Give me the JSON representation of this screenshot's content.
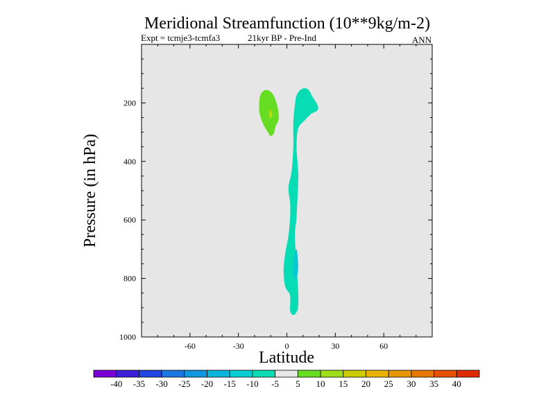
{
  "chart_data": {
    "type": "contour",
    "title": "Meridional Streamfunction (10**9kg/m-2)",
    "subtitle_left": "Expt = tcmje3-tcmfa3",
    "subtitle_mid": "21kyr BP - Pre-Ind",
    "subtitle_right": "ANN",
    "xlabel": "Latitude",
    "ylabel": "Pressure (in hPa)",
    "xlim": [
      -90,
      90
    ],
    "ylim": [
      1000,
      0
    ],
    "y_scale": "linear, inverted",
    "xticks": [
      -60,
      -30,
      0,
      30,
      60
    ],
    "yticks": [
      1000,
      800,
      600,
      400,
      200
    ],
    "background_color": "#e6e6e6",
    "colorbar": {
      "labels": [
        "-40",
        "-35",
        "-30",
        "-25",
        "-20",
        "-15",
        "-10",
        "-5",
        "5",
        "10",
        "15",
        "20",
        "25",
        "30",
        "35",
        "40"
      ],
      "colors": [
        "#7a00d8",
        "#3c1fd6",
        "#2244e0",
        "#1a78e0",
        "#1296e0",
        "#0ab4dc",
        "#08cfd4",
        "#08dcb4",
        "#e6e6e6",
        "#66dd22",
        "#9edd1a",
        "#cccc00",
        "#e6b400",
        "#e69600",
        "#e67800",
        "#e65000",
        "#e02a00"
      ]
    },
    "regions": [
      {
        "name": "positive cell near 10S",
        "level": "5 to 10",
        "color": "#66dd22",
        "outline": [
          [
            -13,
            156
          ],
          [
            -9,
            168
          ],
          [
            -6,
            208
          ],
          [
            -5,
            253
          ],
          [
            -7,
            280
          ],
          [
            -8,
            303
          ],
          [
            -10,
            313
          ],
          [
            -12,
            298
          ],
          [
            -15,
            268
          ],
          [
            -17,
            232
          ],
          [
            -17,
            193
          ],
          [
            -16,
            168
          ]
        ]
      },
      {
        "name": "positive cell core",
        "level": "10 to 15",
        "color": "#b4dd14",
        "outline": [
          [
            -10,
            225
          ],
          [
            -9,
            242
          ],
          [
            -10,
            252
          ],
          [
            -11,
            244
          ],
          [
            -11,
            228
          ]
        ]
      },
      {
        "name": "negative plume near equator",
        "level": "-10 to -5",
        "color": "#08dcb4",
        "outline": [
          [
            9,
            153
          ],
          [
            13,
            153
          ],
          [
            16,
            180
          ],
          [
            19,
            208
          ],
          [
            19,
            225
          ],
          [
            15,
            238
          ],
          [
            11,
            260
          ],
          [
            7,
            288
          ],
          [
            6,
            350
          ],
          [
            7,
            432
          ],
          [
            7,
            475
          ],
          [
            6,
            591
          ],
          [
            5,
            654
          ],
          [
            6,
            751
          ],
          [
            7,
            843
          ],
          [
            7,
            897
          ],
          [
            6,
            915
          ],
          [
            4,
            925
          ],
          [
            2,
            910
          ],
          [
            2,
            858
          ],
          [
            -1,
            828
          ],
          [
            -2,
            773
          ],
          [
            -1,
            714
          ],
          [
            1,
            654
          ],
          [
            2,
            591
          ],
          [
            2,
            542
          ],
          [
            1,
            490
          ],
          [
            3,
            432
          ],
          [
            4,
            350
          ],
          [
            4,
            268
          ],
          [
            5,
            207
          ],
          [
            6,
            175
          ]
        ]
      },
      {
        "name": "negative plume core",
        "level": "-15 to -10",
        "color": "#0ac8d2",
        "outline": [
          [
            6,
            700
          ],
          [
            7,
            760
          ],
          [
            6,
            800
          ],
          [
            4,
            790
          ],
          [
            4,
            740
          ]
        ]
      }
    ]
  }
}
